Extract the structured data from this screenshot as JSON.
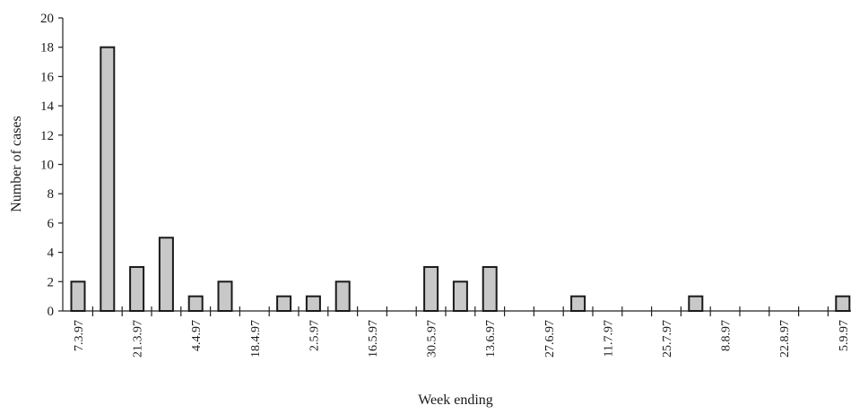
{
  "chart_data": {
    "type": "bar",
    "title": "",
    "xlabel": "Week ending",
    "ylabel": "Number of cases",
    "ylim": [
      0,
      20
    ],
    "yticks": [
      0,
      2,
      4,
      6,
      8,
      10,
      12,
      14,
      16,
      18,
      20
    ],
    "x_tick_labels": [
      "7.3.97",
      "21.3.97",
      "4.4.97",
      "18.4.97",
      "2.5.97",
      "16.5.97",
      "30.5.97",
      "13.6.97",
      "27.6.97",
      "11.7.97",
      "25.7.97",
      "8.8.97",
      "22.8.97",
      "5.9.97"
    ],
    "weeks": [
      "7.3.97",
      "14.3.97",
      "21.3.97",
      "28.3.97",
      "4.4.97",
      "11.4.97",
      "18.4.97",
      "25.4.97",
      "2.5.97",
      "9.5.97",
      "16.5.97",
      "23.5.97",
      "30.5.97",
      "6.6.97",
      "13.6.97",
      "20.6.97",
      "27.6.97",
      "4.7.97",
      "11.7.97",
      "18.7.97",
      "25.7.97",
      "1.8.97",
      "8.8.97",
      "15.8.97",
      "22.8.97",
      "29.8.97",
      "5.9.97"
    ],
    "values": [
      2,
      18,
      3,
      5,
      1,
      2,
      0,
      1,
      1,
      2,
      0,
      0,
      3,
      2,
      3,
      0,
      0,
      1,
      0,
      0,
      0,
      1,
      0,
      0,
      0,
      0,
      1
    ],
    "grid": false,
    "bar_color": "#c8c8c8",
    "bar_outline": "#1a1a1a"
  }
}
